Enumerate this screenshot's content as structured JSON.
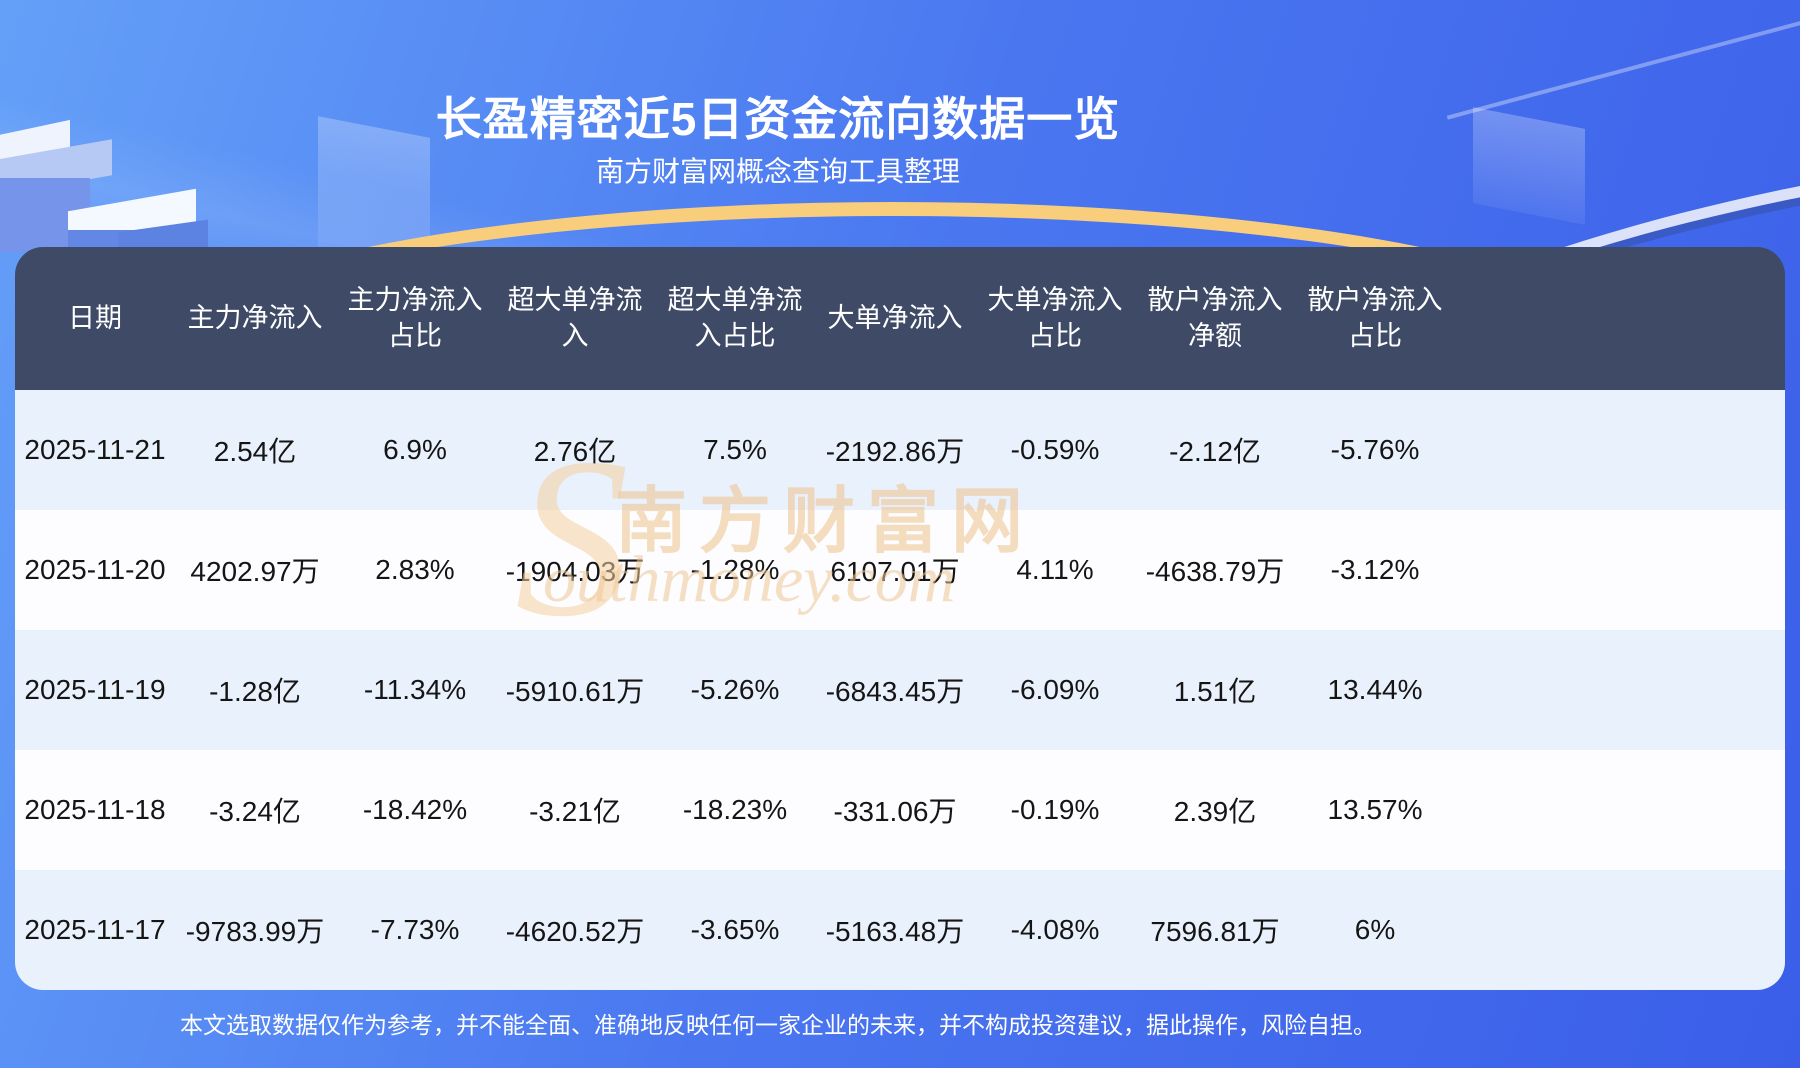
{
  "page": {
    "title": "长盈精密近5日资金流向数据一览",
    "subtitle": "南方财富网概念查询工具整理",
    "disclaimer": "本文选取数据仅作为参考，并不能全面、准确地反映任何一家企业的未来，并不构成投资建议，据此操作，风险自担。",
    "watermark": {
      "brand_en_initial": "S",
      "brand_cn": "南方财富网",
      "brand_en_rest": "outhmoney.com"
    }
  },
  "colors": {
    "background_top_left": "#64a0f8",
    "background_bottom_right": "#3b5ee9",
    "table_header_bg": "#3e4a66",
    "row_stripe_bg": "#e9f1fc",
    "row_plain_bg": "#fdfdff",
    "gold_arc": "#f8cd7b",
    "watermark_tan": "#eec696",
    "text_on_dark": "#ffffff",
    "cell_text": "#151515"
  },
  "chart_data": {
    "type": "table",
    "title": "长盈精密近5日资金流向数据一览",
    "columns": [
      "日期",
      "主力净流入",
      "主力净流入占比",
      "超大单净流入",
      "超大单净流入占比",
      "大单净流入",
      "大单净流入占比",
      "散户净流入净额",
      "散户净流入占比"
    ],
    "rows": [
      [
        "2025-11-21",
        "2.54亿",
        "6.9%",
        "2.76亿",
        "7.5%",
        "-2192.86万",
        "-0.59%",
        "-2.12亿",
        "-5.76%"
      ],
      [
        "2025-11-20",
        "4202.97万",
        "2.83%",
        "-1904.03万",
        "-1.28%",
        "6107.01万",
        "4.11%",
        "-4638.79万",
        "-3.12%"
      ],
      [
        "2025-11-19",
        "-1.28亿",
        "-11.34%",
        "-5910.61万",
        "-5.26%",
        "-6843.45万",
        "-6.09%",
        "1.51亿",
        "13.44%"
      ],
      [
        "2025-11-18",
        "-3.24亿",
        "-18.42%",
        "-3.21亿",
        "-18.23%",
        "-331.06万",
        "-0.19%",
        "2.39亿",
        "13.57%"
      ],
      [
        "2025-11-17",
        "-9783.99万",
        "-7.73%",
        "-4620.52万",
        "-3.65%",
        "-5163.48万",
        "-4.08%",
        "7596.81万",
        "6%"
      ]
    ]
  }
}
